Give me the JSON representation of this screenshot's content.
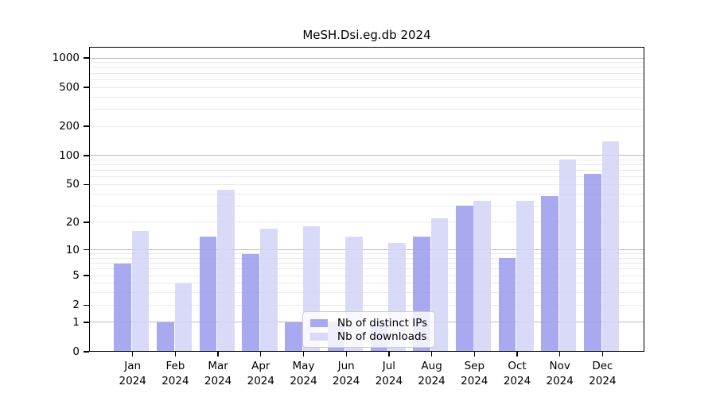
{
  "title": "MeSH.Dsi.eg.db 2024",
  "legend": {
    "items": [
      {
        "label": "Nb of distinct IPs",
        "color": "#a9a9ef"
      },
      {
        "label": "Nb of downloads",
        "color": "#d9d9f8"
      }
    ],
    "position": "lower center"
  },
  "chart_data": {
    "type": "bar",
    "title": "MeSH.Dsi.eg.db 2024",
    "categories": [
      "Jan 2024",
      "Feb 2024",
      "Mar 2024",
      "Apr 2024",
      "May 2024",
      "Jun 2024",
      "Jul 2024",
      "Aug 2024",
      "Sep 2024",
      "Oct 2024",
      "Nov 2024",
      "Dec 2024"
    ],
    "series": [
      {
        "name": "Nb of distinct IPs",
        "color": "#a9a9ef",
        "values": [
          7,
          1,
          14,
          9,
          1,
          1,
          1,
          14,
          30,
          8,
          38,
          65
        ]
      },
      {
        "name": "Nb of downloads",
        "color": "#d9d9f8",
        "values": [
          16,
          4,
          44,
          17,
          18,
          14,
          12,
          22,
          34,
          34,
          91,
          140
        ]
      }
    ],
    "xlabel": "",
    "ylabel": "",
    "yscale": "log1p",
    "yticks": [
      0,
      1,
      2,
      5,
      10,
      20,
      50,
      100,
      200,
      500,
      1000
    ],
    "ylim": [
      0,
      1150
    ],
    "grid": "horizontal major and minor gridlines",
    "legend_position": "lower center"
  }
}
